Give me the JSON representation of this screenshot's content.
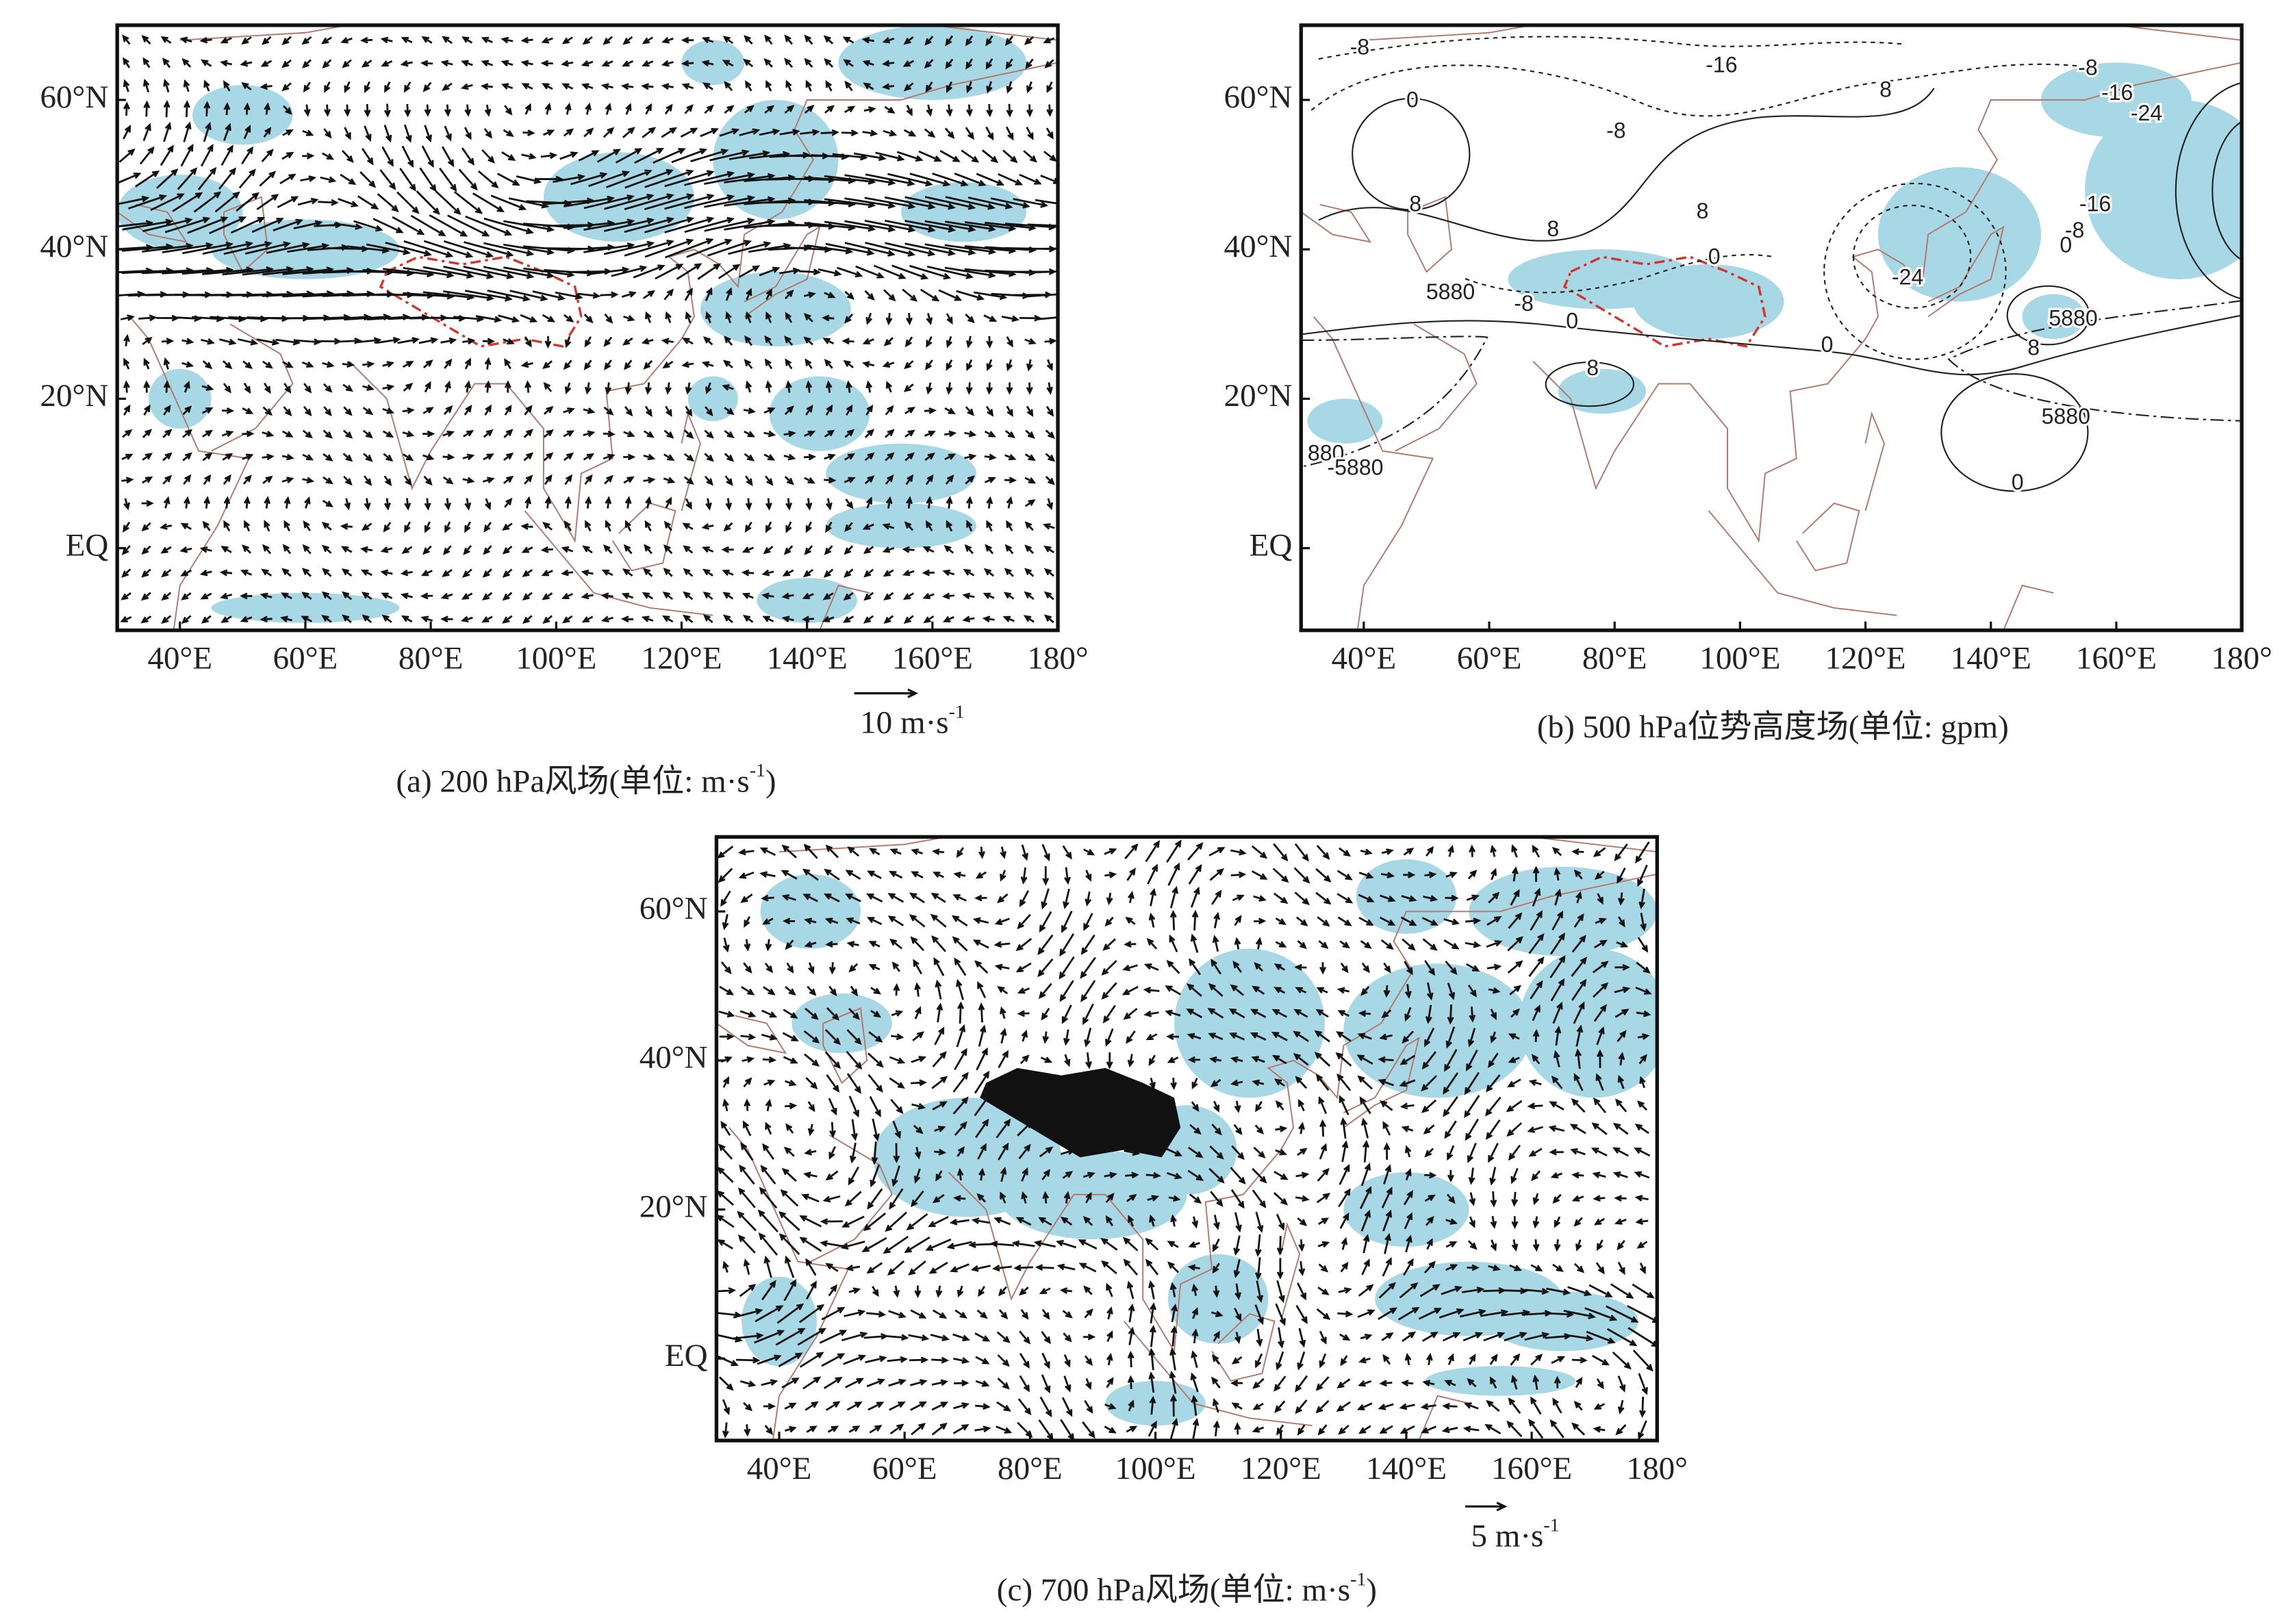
{
  "panels": [
    {
      "y_labels": [
        "60°N",
        "40°N",
        "20°N",
        "EQ"
      ],
      "x_labels": [
        "40°E",
        "60°E",
        "80°E",
        "100°E",
        "120°E",
        "140°E",
        "160°E",
        "180°"
      ],
      "reference_vector": {
        "text": "10 m·s",
        "sup": "-1"
      },
      "caption": {
        "text": "(a) 200 hPa风场(单位: m·s",
        "sup": "-1",
        "end": ")"
      }
    },
    {
      "y_labels": [
        "60°N",
        "40°N",
        "20°N",
        "EQ"
      ],
      "x_labels": [
        "40°E",
        "60°E",
        "80°E",
        "100°E",
        "120°E",
        "140°E",
        "160°E",
        "180°"
      ],
      "contour_labels": [
        "-8",
        "-16",
        "0",
        "8",
        "-8",
        "-8",
        "-16",
        "-24",
        "8",
        "8",
        "-16",
        "-8",
        "8",
        "0",
        "0",
        "-24",
        "5880",
        "-8",
        "0",
        "5880",
        "8",
        "0",
        "8",
        "5880",
        "0",
        "880",
        "-5880"
      ],
      "caption": {
        "text": "(b) 500 hPa位势高度场(单位: gpm)"
      }
    },
    {
      "y_labels": [
        "60°N",
        "40°N",
        "20°N",
        "EQ"
      ],
      "x_labels": [
        "40°E",
        "60°E",
        "80°E",
        "100°E",
        "120°E",
        "140°E",
        "160°E",
        "180°"
      ],
      "reference_vector": {
        "text": "5 m·s",
        "sup": "-1"
      },
      "caption": {
        "text": "(c) 700 hPa风场(单位: m·s",
        "sup": "-1",
        "end": ")"
      }
    }
  ]
}
